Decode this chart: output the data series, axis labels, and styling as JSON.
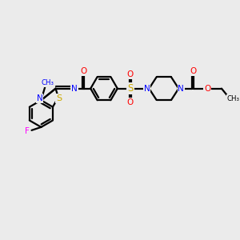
{
  "bg_color": "#ebebeb",
  "atom_colors": {
    "C": "#000000",
    "N": "#0000ff",
    "O": "#ff0000",
    "S": "#ccaa00",
    "F": "#ff00ff"
  },
  "bond_color": "#000000",
  "lw": 1.6,
  "fs": 7.5
}
